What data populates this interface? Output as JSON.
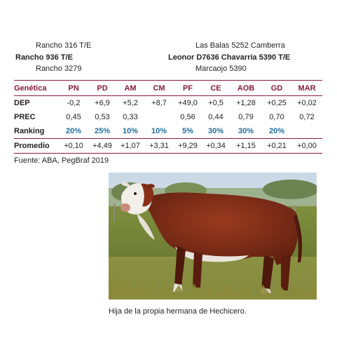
{
  "pedigree": {
    "sire_sire": "Rancho 316 T/E",
    "sire": "Rancho 936 T/E",
    "sire_dam": "Rancho 3279",
    "dam_sire": "Las Balas 5252 Camberra",
    "dam": "Leonor D7636 Chavarría 5390 T/E",
    "dam_dam": "Marcaojo 5390"
  },
  "table": {
    "header": [
      "Genética",
      "PN",
      "PD",
      "AM",
      "CM",
      "PF",
      "CE",
      "AOB",
      "GD",
      "MAR"
    ],
    "rows": [
      {
        "label": "DEP",
        "values": [
          "-0,2",
          "+6,9",
          "+5,2",
          "+8,7",
          "+49,0",
          "+0,5",
          "+1,28",
          "+0,25",
          "+0,02"
        ]
      },
      {
        "label": "PREC",
        "values": [
          "0,45",
          "0,53",
          "0,33",
          "",
          "0,56",
          "0,44",
          "0,79",
          "0,70",
          "0,72"
        ]
      },
      {
        "label": "Ranking",
        "values": [
          "20%",
          "25%",
          "10%",
          "10%",
          "5%",
          "30%",
          "30%",
          "20%",
          ""
        ]
      },
      {
        "label": "Promedio",
        "values": [
          "+0,10",
          "+4,49",
          "+1,07",
          "+3,31",
          "+9,29",
          "+0,34",
          "+1,15",
          "+0,21",
          "+0,00"
        ]
      }
    ]
  },
  "source": "Fuente: ABA, PegBraf 2019",
  "caption": "Hija de la propia hermana de Hechicero.",
  "colors": {
    "accent": "#8b1a3a",
    "ranking": "#1e6f9f"
  }
}
